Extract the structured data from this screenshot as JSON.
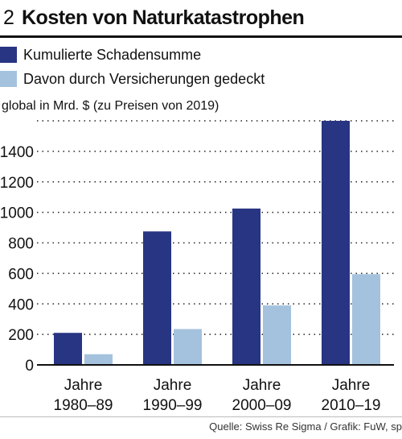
{
  "figure": {
    "number": "2",
    "title": "Kosten von Naturkatastrophen"
  },
  "colors": {
    "series_1": "#283583",
    "series_2": "#a4c2dd",
    "text": "#111111"
  },
  "source": "Quelle: Swiss Re Sigma / Grafik: FuW, sp",
  "chart_data": {
    "type": "bar",
    "title": "Kosten von Naturkatastrophen",
    "ylabel": "global in Mrd. $ (zu Preisen von 2019)",
    "xlabel": "",
    "categories": [
      [
        "Jahre",
        "1980–89"
      ],
      [
        "Jahre",
        "1990–99"
      ],
      [
        "Jahre",
        "2000–09"
      ],
      [
        "Jahre",
        "2010–19"
      ]
    ],
    "series": [
      {
        "name": "Kumulierte Schadensumme",
        "values": [
          210,
          875,
          1025,
          1600
        ]
      },
      {
        "name": "Davon durch Versicherungen gedeckt",
        "values": [
          70,
          235,
          390,
          595
        ]
      }
    ],
    "ylim": [
      0,
      1600
    ],
    "yticks": [
      0,
      200,
      400,
      600,
      800,
      1000,
      1200,
      1400
    ],
    "grid": true,
    "legend_position": "top-left"
  }
}
